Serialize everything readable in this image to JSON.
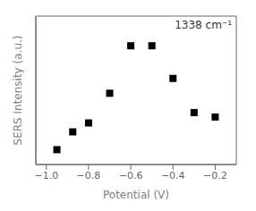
{
  "chart_data": {
    "type": "scatter",
    "x": [
      -0.95,
      -0.875,
      -0.8,
      -0.7,
      -0.6,
      -0.5,
      -0.4,
      -0.3,
      -0.2
    ],
    "values": [
      0.1,
      0.22,
      0.28,
      0.48,
      0.8,
      0.8,
      0.58,
      0.35,
      0.32
    ],
    "xlabel": "Potential (V)",
    "ylabel": "SERS Intensity (a.u.)",
    "annotation": "1338 cm⁻¹",
    "xlim": [
      -1.05,
      -0.1
    ],
    "ylim": [
      0.0,
      1.0
    ],
    "xticks": [
      {
        "value": -1.0,
        "label": "−1.0"
      },
      {
        "value": -0.8,
        "label": "−0.8"
      },
      {
        "value": -0.6,
        "label": "−0.6"
      },
      {
        "value": -0.4,
        "label": "−0.4"
      },
      {
        "value": -0.2,
        "label": "−0.2"
      }
    ],
    "yticks": [],
    "marker": "square",
    "color": "black",
    "tick_labels": "x"
  }
}
